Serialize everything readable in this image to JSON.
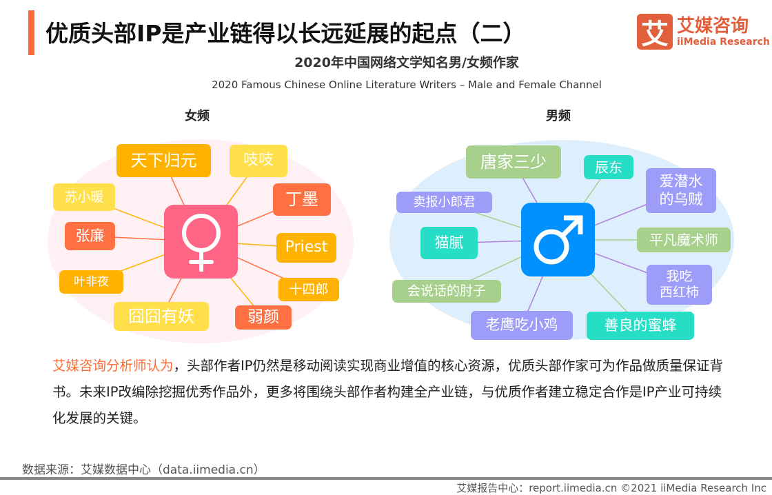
{
  "header": {
    "title": "优质头部IP是产业链得以长远延展的起点（二）",
    "subtitle_cn": "2020年中国网络文学知名男/女频作家",
    "subtitle_en": "2020 Famous Chinese Online Literature Writers – Male and Female Channel",
    "accent": "#FF6B35"
  },
  "logo": {
    "mark": "艾",
    "cn": "艾媒咨询",
    "en": "iiMedia Research",
    "color": "#E25F3B"
  },
  "female": {
    "label": "女频",
    "icon": "female-symbol-icon",
    "center_color": "#FF6584",
    "bg": "#FFF0F3",
    "nodes": [
      {
        "name": "天下归元",
        "color": "#FFB300",
        "line": "#FF7043"
      },
      {
        "name": "吱吱",
        "color": "#FFE04B",
        "line": "#FFB300"
      },
      {
        "name": "苏小暖",
        "color": "#FFE04B",
        "line": "#FFB300"
      },
      {
        "name": "丁墨",
        "color": "#FF7043",
        "line": "#FF7043"
      },
      {
        "name": "张廉",
        "color": "#FF7043",
        "line": "#FF7043"
      },
      {
        "name": "Priest",
        "color": "#FFB300",
        "line": "#FFB300"
      },
      {
        "name": "叶非夜",
        "color": "#FFB300",
        "line": "#FFB300"
      },
      {
        "name": "十四郎",
        "color": "#FFB300",
        "line": "#FF7043"
      },
      {
        "name": "囧囧有妖",
        "color": "#FFE04B",
        "line": "#FF7043"
      },
      {
        "name": "弱颜",
        "color": "#FF7043",
        "line": "#FFB300"
      }
    ]
  },
  "male": {
    "label": "男频",
    "icon": "male-symbol-icon",
    "center_color": "#0091FF",
    "bg": "#DDEEFC",
    "nodes": [
      {
        "name": "唐家三少",
        "color": "#A8D08D",
        "line": "#B07FD6"
      },
      {
        "name": "辰东",
        "color": "#26DDC6",
        "line": "#A8D08D"
      },
      {
        "name": "爱潜水\n的乌贼",
        "color": "#9E9CF9",
        "line": "#B07FD6"
      },
      {
        "name": "卖报小郎君",
        "color": "#9E9CF9",
        "line": "#A8D08D"
      },
      {
        "name": "猫腻",
        "color": "#26DDC6",
        "line": "#B07FD6"
      },
      {
        "name": "平凡魔术师",
        "color": "#A8D08D",
        "line": "#A8D08D"
      },
      {
        "name": "我吃\n西红柿",
        "color": "#9E9CF9",
        "line": "#B07FD6"
      },
      {
        "name": "会说话的肘子",
        "color": "#A8D08D",
        "line": "#A8D08D"
      },
      {
        "name": "老鹰吃小鸡",
        "color": "#9E9CF9",
        "line": "#B07FD6"
      },
      {
        "name": "善良的蜜蜂",
        "color": "#26DDC6",
        "line": "#A8D08D"
      }
    ]
  },
  "analysis": {
    "highlight": "艾媒咨询分析师认为",
    "text": "，头部作者IP仍然是移动阅读实现商业增值的核心资源，优质头部作家可为作品做质量保证背书。未来IP改编除挖掘优秀作品外，更多将围绕头部作者构建全产业链，与优质作者建立稳定合作是IP产业可持续化发展的关键。"
  },
  "footer": {
    "source": "数据来源：艾媒数据中心（data.iimedia.cn）",
    "copyright": "艾媒报告中心：report.iimedia.cn  ©2021  iiMedia Research  Inc"
  }
}
